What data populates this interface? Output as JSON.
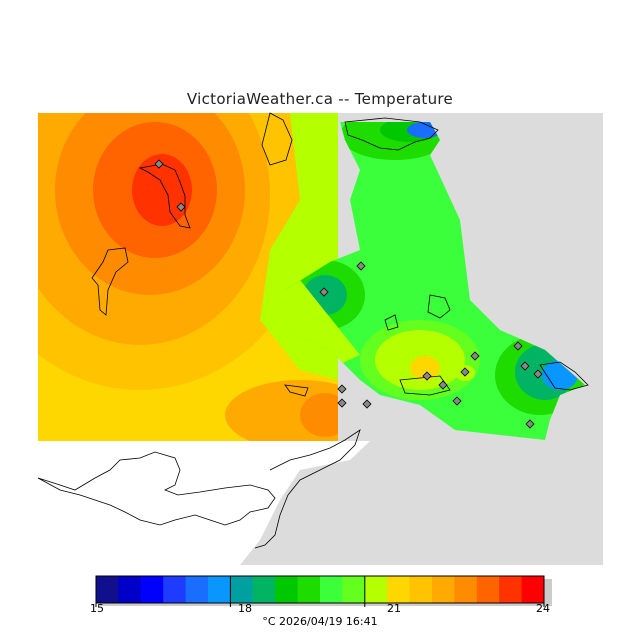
{
  "title": "VictoriaWeather.ca -- Temperature",
  "colorbar": {
    "colors": [
      "#10108c",
      "#0000c8",
      "#0000ff",
      "#1e3cff",
      "#1a6eff",
      "#0a96ff",
      "#00a0a0",
      "#00b464",
      "#00c800",
      "#1edc00",
      "#3cff3c",
      "#64ff1e",
      "#b4ff00",
      "#ffd700",
      "#ffc300",
      "#ffaa00",
      "#ff8c00",
      "#ff6400",
      "#ff3200",
      "#ff0000"
    ],
    "tick_labels": [
      "15",
      "18",
      "21",
      "24"
    ]
  },
  "caption": "°C  2026/04/19 16:41",
  "colors": {
    "land_background": "#dcdcdc",
    "water_background": "#ffffff",
    "coastline": "#000000"
  }
}
